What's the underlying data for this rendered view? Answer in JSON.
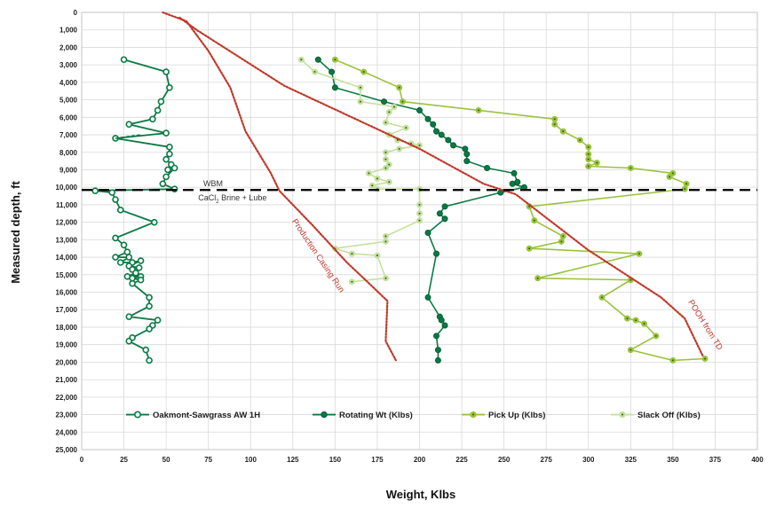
{
  "chart_data": {
    "type": "scatter",
    "xlabel": "Weight, Klbs",
    "ylabel": "Measured depth, ft",
    "xlim": [
      0,
      400
    ],
    "ylim": [
      0,
      25000
    ],
    "y_inverted": true,
    "grid": true,
    "legend_position": "bottom-inside",
    "x_ticks": [
      "0",
      "25",
      "50",
      "75",
      "100",
      "125",
      "150",
      "175",
      "200",
      "225",
      "250",
      "275",
      "300",
      "325",
      "350",
      "375",
      "400"
    ],
    "y_ticks": [
      "0",
      "1,000",
      "2,000",
      "3,000",
      "4,000",
      "5,000",
      "6,000",
      "7,000",
      "8,000",
      "9,000",
      "10,000",
      "11,000",
      "12,000",
      "13,000",
      "14,000",
      "15,000",
      "16,000",
      "17,000",
      "18,000",
      "19,000",
      "20,000",
      "21,000",
      "22,000",
      "23,000",
      "24,000",
      "25,000"
    ],
    "series": [
      {
        "name": "Oakmont-Sawgrass AW 1H",
        "color": "#0a7a45",
        "marker": "open-circle",
        "line": true,
        "points": [
          [
            25,
            2700
          ],
          [
            50,
            3400
          ],
          [
            52,
            4300
          ],
          [
            47,
            5100
          ],
          [
            45,
            5600
          ],
          [
            42,
            6100
          ],
          [
            28,
            6400
          ],
          [
            50,
            6900
          ],
          [
            20,
            7200
          ],
          [
            52,
            7700
          ],
          [
            52,
            8100
          ],
          [
            50,
            8400
          ],
          [
            53,
            8700
          ],
          [
            51,
            9000
          ],
          [
            55,
            8900
          ],
          [
            50,
            9400
          ],
          [
            48,
            9800
          ],
          [
            55,
            10100
          ],
          [
            8,
            10200
          ],
          [
            18,
            10300
          ],
          [
            20,
            10700
          ],
          [
            23,
            11300
          ],
          [
            43,
            12000
          ],
          [
            20,
            12900
          ],
          [
            25,
            13300
          ],
          [
            27,
            13700
          ],
          [
            20,
            14000
          ],
          [
            28,
            14000
          ],
          [
            23,
            14300
          ],
          [
            30,
            14300
          ],
          [
            35,
            14200
          ],
          [
            28,
            14500
          ],
          [
            34,
            14600
          ],
          [
            30,
            14700
          ],
          [
            32,
            14900
          ],
          [
            27,
            15100
          ],
          [
            35,
            15100
          ],
          [
            30,
            15200
          ],
          [
            35,
            15300
          ],
          [
            30,
            15500
          ],
          [
            40,
            16300
          ],
          [
            40,
            16800
          ],
          [
            28,
            17400
          ],
          [
            45,
            17600
          ],
          [
            42,
            17900
          ],
          [
            40,
            18100
          ],
          [
            30,
            18600
          ],
          [
            28,
            18800
          ],
          [
            38,
            19300
          ],
          [
            40,
            19900
          ]
        ]
      },
      {
        "name": "Rotating Wt (Klbs)",
        "color": "#0a7a45",
        "marker": "filled-circle",
        "line": true,
        "points": [
          [
            140,
            2700
          ],
          [
            148,
            3400
          ],
          [
            150,
            4300
          ],
          [
            179,
            5100
          ],
          [
            200,
            5600
          ],
          [
            205,
            6100
          ],
          [
            208,
            6400
          ],
          [
            210,
            6800
          ],
          [
            213,
            7000
          ],
          [
            217,
            7300
          ],
          [
            220,
            7600
          ],
          [
            227,
            7800
          ],
          [
            228,
            8100
          ],
          [
            228,
            8500
          ],
          [
            240,
            8900
          ],
          [
            256,
            9200
          ],
          [
            258,
            9700
          ],
          [
            255,
            9800
          ],
          [
            262,
            10000
          ],
          [
            248,
            10300
          ],
          [
            215,
            11100
          ],
          [
            212,
            11500
          ],
          [
            215,
            11800
          ],
          [
            205,
            12600
          ],
          [
            210,
            13800
          ],
          [
            205,
            16300
          ],
          [
            212,
            17400
          ],
          [
            213,
            17600
          ],
          [
            215,
            17900
          ],
          [
            210,
            18500
          ],
          [
            211,
            19300
          ],
          [
            211,
            19900
          ]
        ]
      },
      {
        "name": "Pick Up (Klbs)",
        "color": "#9ac33c",
        "marker": "dot-circle",
        "line": true,
        "points": [
          [
            150,
            2700
          ],
          [
            167,
            3400
          ],
          [
            188,
            4300
          ],
          [
            190,
            5100
          ],
          [
            235,
            5600
          ],
          [
            280,
            6100
          ],
          [
            280,
            6400
          ],
          [
            285,
            6800
          ],
          [
            295,
            7300
          ],
          [
            300,
            7700
          ],
          [
            300,
            8100
          ],
          [
            300,
            8400
          ],
          [
            305,
            8600
          ],
          [
            300,
            8800
          ],
          [
            325,
            8900
          ],
          [
            350,
            9200
          ],
          [
            348,
            9400
          ],
          [
            358,
            9800
          ],
          [
            357,
            10100
          ],
          [
            265,
            11100
          ],
          [
            268,
            11900
          ],
          [
            285,
            12800
          ],
          [
            284,
            13100
          ],
          [
            265,
            13500
          ],
          [
            330,
            13800
          ],
          [
            270,
            15200
          ],
          [
            325,
            15300
          ],
          [
            308,
            16300
          ],
          [
            323,
            17500
          ],
          [
            328,
            17600
          ],
          [
            333,
            17800
          ],
          [
            340,
            18500
          ],
          [
            325,
            19300
          ],
          [
            350,
            19900
          ],
          [
            369,
            19800
          ]
        ]
      },
      {
        "name": "Slack Off (Klbs)",
        "color": "#c5e09e",
        "marker": "dot-circle",
        "line": true,
        "points": [
          [
            130,
            2700
          ],
          [
            138,
            3400
          ],
          [
            165,
            4300
          ],
          [
            165,
            5100
          ],
          [
            185,
            5400
          ],
          [
            182,
            5700
          ],
          [
            180,
            6300
          ],
          [
            192,
            6600
          ],
          [
            182,
            7000
          ],
          [
            187,
            7300
          ],
          [
            195,
            7500
          ],
          [
            200,
            7600
          ],
          [
            188,
            7800
          ],
          [
            180,
            8000
          ],
          [
            180,
            8400
          ],
          [
            182,
            8700
          ],
          [
            180,
            8900
          ],
          [
            170,
            9200
          ],
          [
            175,
            9500
          ],
          [
            182,
            9700
          ],
          [
            172,
            9900
          ],
          [
            175,
            10100
          ],
          [
            200,
            10100
          ],
          [
            200,
            11000
          ],
          [
            200,
            11500
          ],
          [
            200,
            11900
          ],
          [
            180,
            12800
          ],
          [
            180,
            13100
          ],
          [
            150,
            13500
          ],
          [
            160,
            13800
          ],
          [
            175,
            13900
          ],
          [
            180,
            15200
          ],
          [
            160,
            15400
          ]
        ]
      }
    ],
    "trend_lines": [
      {
        "label": "Production Casing Run",
        "color": "#c0392b",
        "style": "dotted",
        "points": [
          [
            48,
            0
          ],
          [
            62,
            500
          ],
          [
            75,
            2200
          ],
          [
            88,
            4300
          ],
          [
            97,
            6800
          ],
          [
            112,
            9200
          ],
          [
            117,
            10200
          ],
          [
            137,
            12200
          ],
          [
            157,
            14300
          ],
          [
            168,
            15300
          ],
          [
            181,
            16500
          ],
          [
            180,
            18800
          ],
          [
            186,
            19900
          ]
        ]
      },
      {
        "label": "POOH from TD",
        "color": "#c0392b",
        "style": "dotted",
        "points": [
          [
            58,
            300
          ],
          [
            68,
            1000
          ],
          [
            120,
            4200
          ],
          [
            200,
            7800
          ],
          [
            238,
            9800
          ],
          [
            257,
            10400
          ],
          [
            300,
            13600
          ],
          [
            343,
            16300
          ],
          [
            357,
            17500
          ],
          [
            368,
            19700
          ]
        ]
      }
    ],
    "reference_line": {
      "y": 10150,
      "style": "dashed",
      "label_above": "WBM",
      "label_below_prefix": "CaCl",
      "label_below_sub": "2",
      "label_below_suffix": " Brine + Lube"
    },
    "short_dash": {
      "x1": 20,
      "y1": 7200,
      "x2": 35,
      "y2": 7000
    }
  },
  "annotations": {
    "trend1_label": "Production Casing Run",
    "trend2_label": "POOH from TD"
  }
}
